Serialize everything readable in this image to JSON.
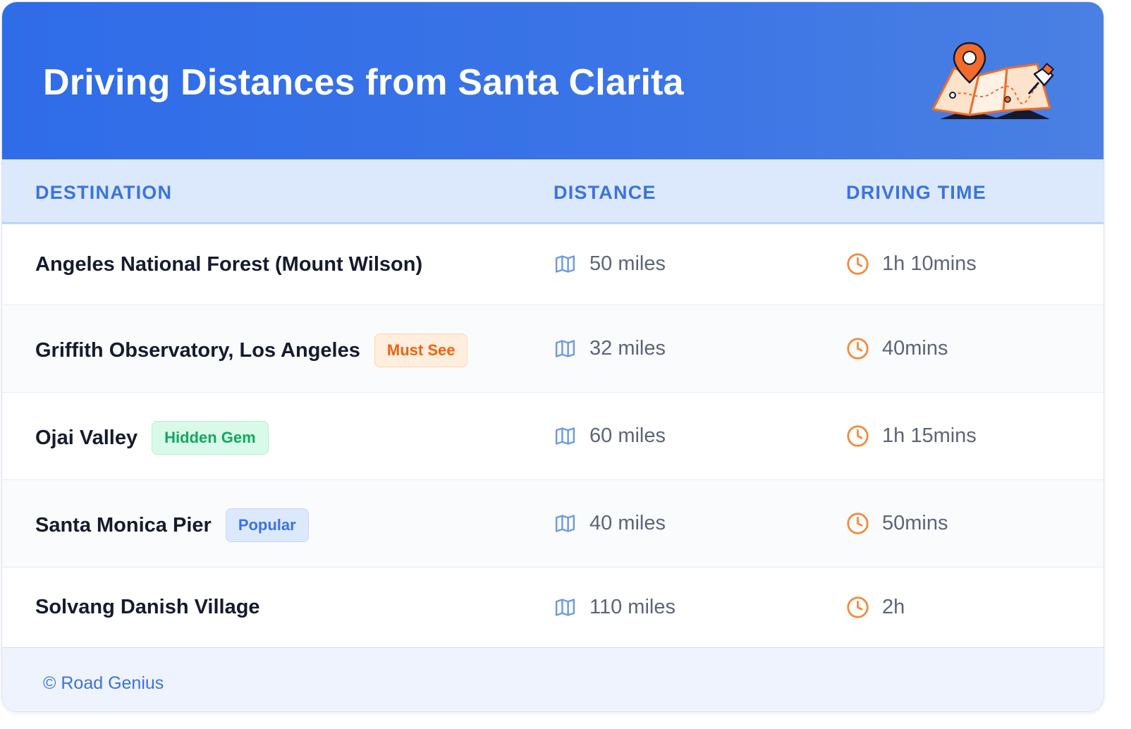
{
  "header": {
    "title": "Driving Distances from Santa Clarita",
    "illustration_icon": "folded-map-with-location-pin-icon",
    "gradient_start": "#2f6ce8",
    "gradient_end": "#4a80e3"
  },
  "table": {
    "columns": [
      "DESTINATION",
      "DISTANCE",
      "DRIVING TIME"
    ],
    "distance_icon": "map-icon",
    "time_icon": "clock-icon",
    "rows": [
      {
        "destination": "Angeles National Forest (Mount Wilson)",
        "badge": "",
        "distance": "50 miles",
        "time": "1h 10mins"
      },
      {
        "destination": "Griffith Observatory, Los Angeles",
        "badge": "Must See",
        "badge_color": "#f0620f",
        "distance": "32 miles",
        "time": "40mins"
      },
      {
        "destination": "Ojai Valley",
        "badge": "Hidden Gem",
        "badge_color": "#13a662",
        "distance": "60 miles",
        "time": "1h 15mins"
      },
      {
        "destination": "Santa Monica Pier",
        "badge": "Popular",
        "badge_color": "#3b73e0",
        "distance": "40 miles",
        "time": "50mins"
      },
      {
        "destination": "Solvang Danish Village",
        "badge": "",
        "distance": "110 miles",
        "time": "2h"
      }
    ]
  },
  "footer": {
    "credit": "© Road Genius"
  },
  "colors": {
    "accent": "#3b73e0",
    "header_row_bg": "#dce9fd",
    "time_icon": "#f28a3c",
    "distance_icon": "#6d9ae6"
  }
}
